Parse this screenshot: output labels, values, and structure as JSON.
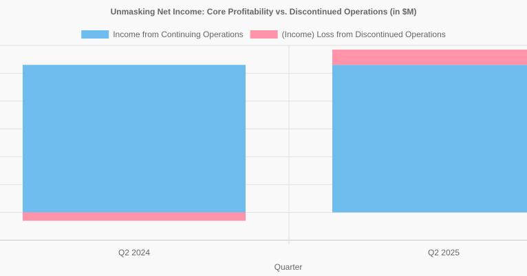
{
  "chart_data": {
    "type": "bar",
    "stacked": true,
    "title": "Unmasking Net Income: Core Profitability vs. Discontinued Operations (in $M)",
    "xlabel": "Quarter",
    "ylabel": "",
    "categories": [
      "Q2 2024",
      "Q2 2025"
    ],
    "series": [
      {
        "name": "Income from Continuing Operations",
        "values": [
          106,
          106
        ],
        "color": "#6fbcef"
      },
      {
        "name": "(Income) Loss from Discontinued Operations",
        "values": [
          -6,
          11
        ],
        "color": "#ff93aa"
      }
    ],
    "ylim": [
      -20,
      120
    ],
    "legend": "top",
    "grid": true
  }
}
